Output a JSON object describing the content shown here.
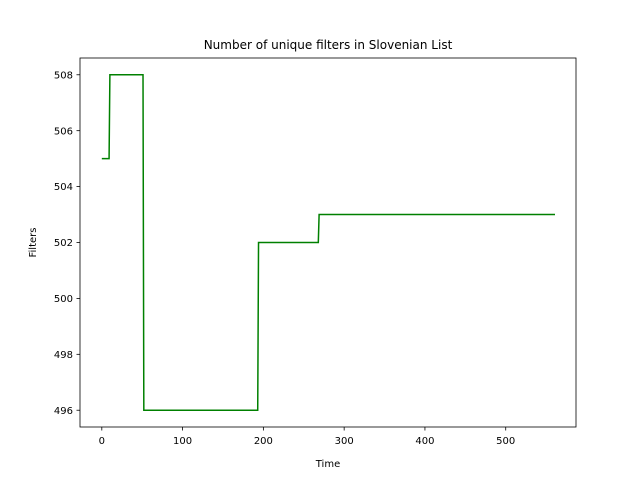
{
  "chart_data": {
    "type": "line",
    "title": "Number of unique filters in Slovenian List",
    "xlabel": "Time",
    "ylabel": "Filters",
    "xlim": [
      -27,
      587
    ],
    "ylim": [
      495.4,
      508.6
    ],
    "xticks": [
      0,
      100,
      200,
      300,
      400,
      500
    ],
    "yticks": [
      496,
      498,
      500,
      502,
      504,
      506,
      508
    ],
    "grid": false,
    "legend": "none",
    "series": [
      {
        "color": "#008000",
        "x": [
          0,
          9,
          10,
          51,
          52,
          193,
          194,
          268,
          269,
          561
        ],
        "y": [
          505,
          505,
          508,
          508,
          496,
          496,
          502,
          502,
          503,
          503
        ]
      }
    ]
  }
}
